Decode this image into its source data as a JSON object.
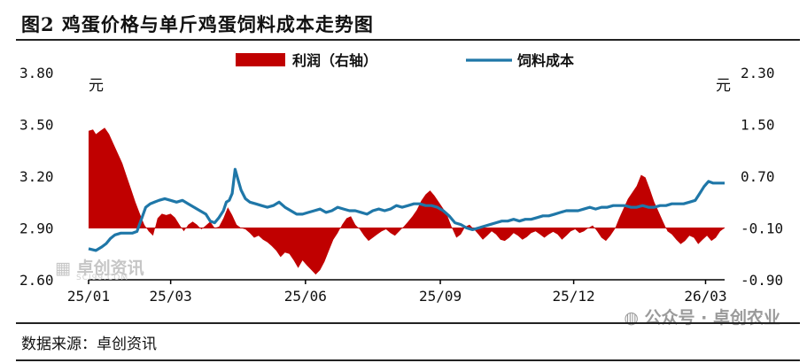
{
  "title": "图2 鸡蛋价格与单斤鸡蛋饲料成本走势图",
  "source": "数据来源：卓创资讯",
  "watermark": "公众号 · 卓创农业",
  "logo": {
    "name": "卓创资讯",
    "sub": "SCI99.COM"
  },
  "colors": {
    "profit": "#c00000",
    "cost": "#1f77a8",
    "axis": "#000000"
  },
  "chart_data": {
    "type": "area",
    "title": "",
    "legend_position": "top-center",
    "left_axis": {
      "unit": "元",
      "ticks": [
        "3.80",
        "3.50",
        "3.20",
        "2.90",
        "2.60"
      ],
      "range": [
        2.6,
        3.8
      ]
    },
    "right_axis": {
      "unit": "元",
      "ticks": [
        "2.30",
        "1.50",
        "0.70",
        "-0.10",
        "-0.90"
      ],
      "range": [
        -0.9,
        2.3
      ]
    },
    "x_ticks": [
      {
        "label": "25/01",
        "t": 0
      },
      {
        "label": "25/03",
        "t": 56
      },
      {
        "label": "25/06",
        "t": 148
      },
      {
        "label": "25/09",
        "t": 240
      },
      {
        "label": "25/12",
        "t": 331
      },
      {
        "label": "26/03",
        "t": 421
      }
    ],
    "series": [
      {
        "name": "利润（右轴）",
        "kind": "area",
        "axis": "right",
        "points": [
          [
            0,
            1.4
          ],
          [
            3,
            1.42
          ],
          [
            5,
            1.35
          ],
          [
            8,
            1.4
          ],
          [
            11,
            1.45
          ],
          [
            14,
            1.35
          ],
          [
            17,
            1.2
          ],
          [
            20,
            1.05
          ],
          [
            23,
            0.9
          ],
          [
            26,
            0.7
          ],
          [
            29,
            0.5
          ],
          [
            32,
            0.3
          ],
          [
            35,
            0.12
          ],
          [
            38,
            -0.05
          ],
          [
            41,
            -0.15
          ],
          [
            44,
            -0.22
          ],
          [
            47,
            0.05
          ],
          [
            50,
            0.12
          ],
          [
            53,
            0.1
          ],
          [
            56,
            0.12
          ],
          [
            59,
            0.06
          ],
          [
            62,
            -0.05
          ],
          [
            65,
            -0.15
          ],
          [
            68,
            -0.05
          ],
          [
            71,
            0.0
          ],
          [
            74,
            -0.05
          ],
          [
            77,
            -0.12
          ],
          [
            80,
            -0.06
          ],
          [
            83,
            0.0
          ],
          [
            86,
            -0.1
          ],
          [
            89,
            -0.08
          ],
          [
            92,
            0.05
          ],
          [
            95,
            0.22
          ],
          [
            98,
            0.1
          ],
          [
            101,
            -0.05
          ],
          [
            104,
            -0.1
          ],
          [
            107,
            -0.12
          ],
          [
            110,
            -0.18
          ],
          [
            113,
            -0.25
          ],
          [
            116,
            -0.22
          ],
          [
            119,
            -0.28
          ],
          [
            122,
            -0.32
          ],
          [
            125,
            -0.38
          ],
          [
            128,
            -0.45
          ],
          [
            131,
            -0.55
          ],
          [
            134,
            -0.48
          ],
          [
            137,
            -0.5
          ],
          [
            140,
            -0.6
          ],
          [
            143,
            -0.72
          ],
          [
            146,
            -0.6
          ],
          [
            149,
            -0.68
          ],
          [
            152,
            -0.75
          ],
          [
            155,
            -0.82
          ],
          [
            158,
            -0.75
          ],
          [
            161,
            -0.62
          ],
          [
            164,
            -0.45
          ],
          [
            167,
            -0.28
          ],
          [
            170,
            -0.18
          ],
          [
            173,
            -0.05
          ],
          [
            176,
            0.05
          ],
          [
            179,
            0.08
          ],
          [
            182,
            -0.05
          ],
          [
            185,
            -0.12
          ],
          [
            188,
            -0.22
          ],
          [
            191,
            -0.3
          ],
          [
            194,
            -0.25
          ],
          [
            197,
            -0.2
          ],
          [
            200,
            -0.15
          ],
          [
            203,
            -0.12
          ],
          [
            206,
            -0.18
          ],
          [
            209,
            -0.22
          ],
          [
            212,
            -0.15
          ],
          [
            215,
            -0.08
          ],
          [
            218,
            0.0
          ],
          [
            221,
            0.08
          ],
          [
            224,
            0.18
          ],
          [
            227,
            0.32
          ],
          [
            230,
            0.42
          ],
          [
            233,
            0.48
          ],
          [
            236,
            0.4
          ],
          [
            239,
            0.3
          ],
          [
            242,
            0.2
          ],
          [
            245,
            0.08
          ],
          [
            248,
            -0.1
          ],
          [
            251,
            -0.25
          ],
          [
            254,
            -0.2
          ],
          [
            257,
            -0.08
          ],
          [
            260,
            -0.05
          ],
          [
            263,
            -0.12
          ],
          [
            266,
            -0.2
          ],
          [
            269,
            -0.28
          ],
          [
            272,
            -0.22
          ],
          [
            275,
            -0.15
          ],
          [
            278,
            -0.2
          ],
          [
            281,
            -0.28
          ],
          [
            284,
            -0.3
          ],
          [
            287,
            -0.25
          ],
          [
            290,
            -0.18
          ],
          [
            293,
            -0.22
          ],
          [
            296,
            -0.28
          ],
          [
            299,
            -0.24
          ],
          [
            302,
            -0.18
          ],
          [
            305,
            -0.15
          ],
          [
            308,
            -0.2
          ],
          [
            311,
            -0.25
          ],
          [
            314,
            -0.2
          ],
          [
            317,
            -0.16
          ],
          [
            320,
            -0.2
          ],
          [
            323,
            -0.28
          ],
          [
            326,
            -0.22
          ],
          [
            329,
            -0.15
          ],
          [
            332,
            -0.12
          ],
          [
            335,
            -0.18
          ],
          [
            338,
            -0.15
          ],
          [
            341,
            -0.1
          ],
          [
            344,
            -0.06
          ],
          [
            347,
            -0.15
          ],
          [
            350,
            -0.25
          ],
          [
            353,
            -0.3
          ],
          [
            356,
            -0.22
          ],
          [
            359,
            -0.12
          ],
          [
            362,
            0.05
          ],
          [
            365,
            0.2
          ],
          [
            368,
            0.35
          ],
          [
            371,
            0.45
          ],
          [
            374,
            0.55
          ],
          [
            377,
            0.72
          ],
          [
            380,
            0.68
          ],
          [
            383,
            0.5
          ],
          [
            386,
            0.3
          ],
          [
            389,
            0.15
          ],
          [
            392,
            0.0
          ],
          [
            395,
            -0.15
          ],
          [
            398,
            -0.2
          ],
          [
            401,
            -0.28
          ],
          [
            404,
            -0.35
          ],
          [
            407,
            -0.3
          ],
          [
            410,
            -0.22
          ],
          [
            413,
            -0.25
          ],
          [
            416,
            -0.35
          ],
          [
            419,
            -0.28
          ],
          [
            422,
            -0.22
          ],
          [
            425,
            -0.3
          ],
          [
            428,
            -0.25
          ],
          [
            431,
            -0.15
          ],
          [
            434,
            -0.1
          ]
        ]
      },
      {
        "name": "饲料成本",
        "kind": "line",
        "axis": "left",
        "points": [
          [
            0,
            2.78
          ],
          [
            5,
            2.77
          ],
          [
            9,
            2.79
          ],
          [
            12,
            2.81
          ],
          [
            15,
            2.84
          ],
          [
            18,
            2.86
          ],
          [
            22,
            2.87
          ],
          [
            26,
            2.87
          ],
          [
            30,
            2.87
          ],
          [
            33,
            2.88
          ],
          [
            36,
            2.95
          ],
          [
            39,
            3.02
          ],
          [
            42,
            3.04
          ],
          [
            45,
            3.05
          ],
          [
            48,
            3.06
          ],
          [
            52,
            3.07
          ],
          [
            56,
            3.06
          ],
          [
            60,
            3.05
          ],
          [
            64,
            3.06
          ],
          [
            68,
            3.04
          ],
          [
            72,
            3.02
          ],
          [
            76,
            3.0
          ],
          [
            80,
            2.98
          ],
          [
            83,
            2.94
          ],
          [
            86,
            2.93
          ],
          [
            89,
            2.96
          ],
          [
            92,
            3.0
          ],
          [
            94,
            3.05
          ],
          [
            96,
            3.06
          ],
          [
            98,
            3.1
          ],
          [
            100,
            3.24
          ],
          [
            102,
            3.18
          ],
          [
            104,
            3.12
          ],
          [
            107,
            3.07
          ],
          [
            110,
            3.05
          ],
          [
            114,
            3.04
          ],
          [
            118,
            3.03
          ],
          [
            122,
            3.02
          ],
          [
            126,
            3.03
          ],
          [
            130,
            3.05
          ],
          [
            134,
            3.02
          ],
          [
            138,
            3.0
          ],
          [
            142,
            2.98
          ],
          [
            146,
            2.98
          ],
          [
            150,
            2.99
          ],
          [
            154,
            3.0
          ],
          [
            158,
            3.01
          ],
          [
            162,
            2.99
          ],
          [
            166,
            3.0
          ],
          [
            170,
            3.02
          ],
          [
            174,
            3.01
          ],
          [
            178,
            3.0
          ],
          [
            182,
            3.0
          ],
          [
            186,
            2.99
          ],
          [
            190,
            2.98
          ],
          [
            194,
            3.0
          ],
          [
            198,
            3.01
          ],
          [
            202,
            3.0
          ],
          [
            206,
            3.01
          ],
          [
            210,
            3.03
          ],
          [
            214,
            3.02
          ],
          [
            218,
            3.03
          ],
          [
            222,
            3.04
          ],
          [
            226,
            3.04
          ],
          [
            230,
            3.03
          ],
          [
            234,
            3.03
          ],
          [
            238,
            3.02
          ],
          [
            242,
            3.0
          ],
          [
            246,
            2.97
          ],
          [
            250,
            2.93
          ],
          [
            254,
            2.92
          ],
          [
            258,
            2.9
          ],
          [
            262,
            2.89
          ],
          [
            266,
            2.9
          ],
          [
            270,
            2.91
          ],
          [
            274,
            2.92
          ],
          [
            278,
            2.93
          ],
          [
            282,
            2.94
          ],
          [
            286,
            2.94
          ],
          [
            290,
            2.95
          ],
          [
            294,
            2.94
          ],
          [
            298,
            2.95
          ],
          [
            302,
            2.95
          ],
          [
            306,
            2.96
          ],
          [
            310,
            2.97
          ],
          [
            314,
            2.97
          ],
          [
            318,
            2.98
          ],
          [
            322,
            2.99
          ],
          [
            326,
            3.0
          ],
          [
            330,
            3.0
          ],
          [
            334,
            3.0
          ],
          [
            338,
            3.01
          ],
          [
            342,
            3.02
          ],
          [
            346,
            3.01
          ],
          [
            350,
            3.02
          ],
          [
            354,
            3.02
          ],
          [
            358,
            3.03
          ],
          [
            362,
            3.03
          ],
          [
            366,
            3.03
          ],
          [
            370,
            3.02
          ],
          [
            374,
            3.02
          ],
          [
            378,
            3.03
          ],
          [
            382,
            3.02
          ],
          [
            386,
            3.02
          ],
          [
            390,
            3.03
          ],
          [
            394,
            3.03
          ],
          [
            398,
            3.04
          ],
          [
            402,
            3.04
          ],
          [
            406,
            3.04
          ],
          [
            410,
            3.05
          ],
          [
            414,
            3.06
          ],
          [
            417,
            3.1
          ],
          [
            420,
            3.14
          ],
          [
            423,
            3.17
          ],
          [
            426,
            3.16
          ],
          [
            430,
            3.16
          ],
          [
            434,
            3.16
          ]
        ]
      }
    ]
  }
}
